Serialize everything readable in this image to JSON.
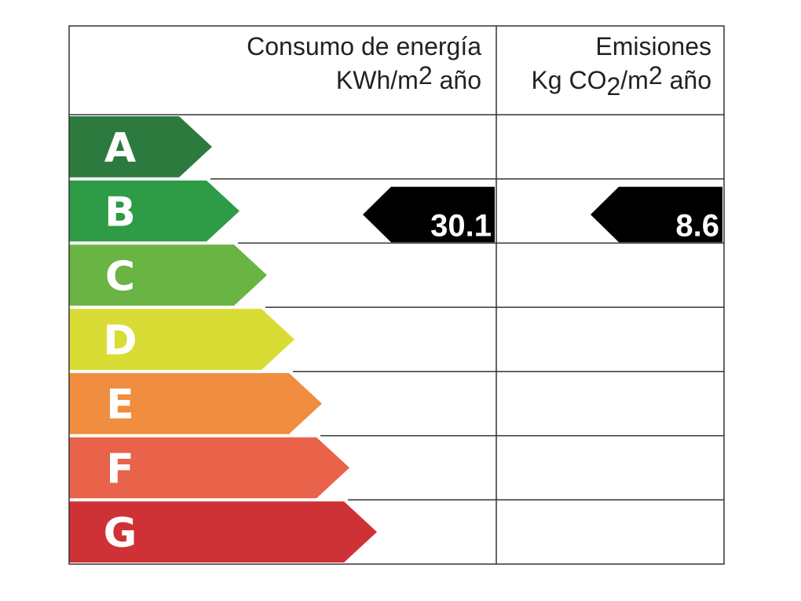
{
  "header": {
    "energy_title": "Consumo de energía",
    "energy_unit": [
      "KWh/m",
      "2",
      "año"
    ],
    "emissions_title": "Emisiones",
    "emissions_unit": [
      "Kg CO",
      "2",
      "/m",
      "2",
      "año"
    ]
  },
  "ratings": [
    {
      "letter": "A",
      "color": "#2d7a3e"
    },
    {
      "letter": "B",
      "color": "#2e9b46"
    },
    {
      "letter": "C",
      "color": "#6ab443"
    },
    {
      "letter": "D",
      "color": "#d9dc35"
    },
    {
      "letter": "E",
      "color": "#f08d3e"
    },
    {
      "letter": "F",
      "color": "#e9624a"
    },
    {
      "letter": "G",
      "color": "#cf3236"
    }
  ],
  "energy": {
    "rating": "B",
    "value": 30.1
  },
  "emissions": {
    "rating": "B",
    "value": 8.6
  }
}
